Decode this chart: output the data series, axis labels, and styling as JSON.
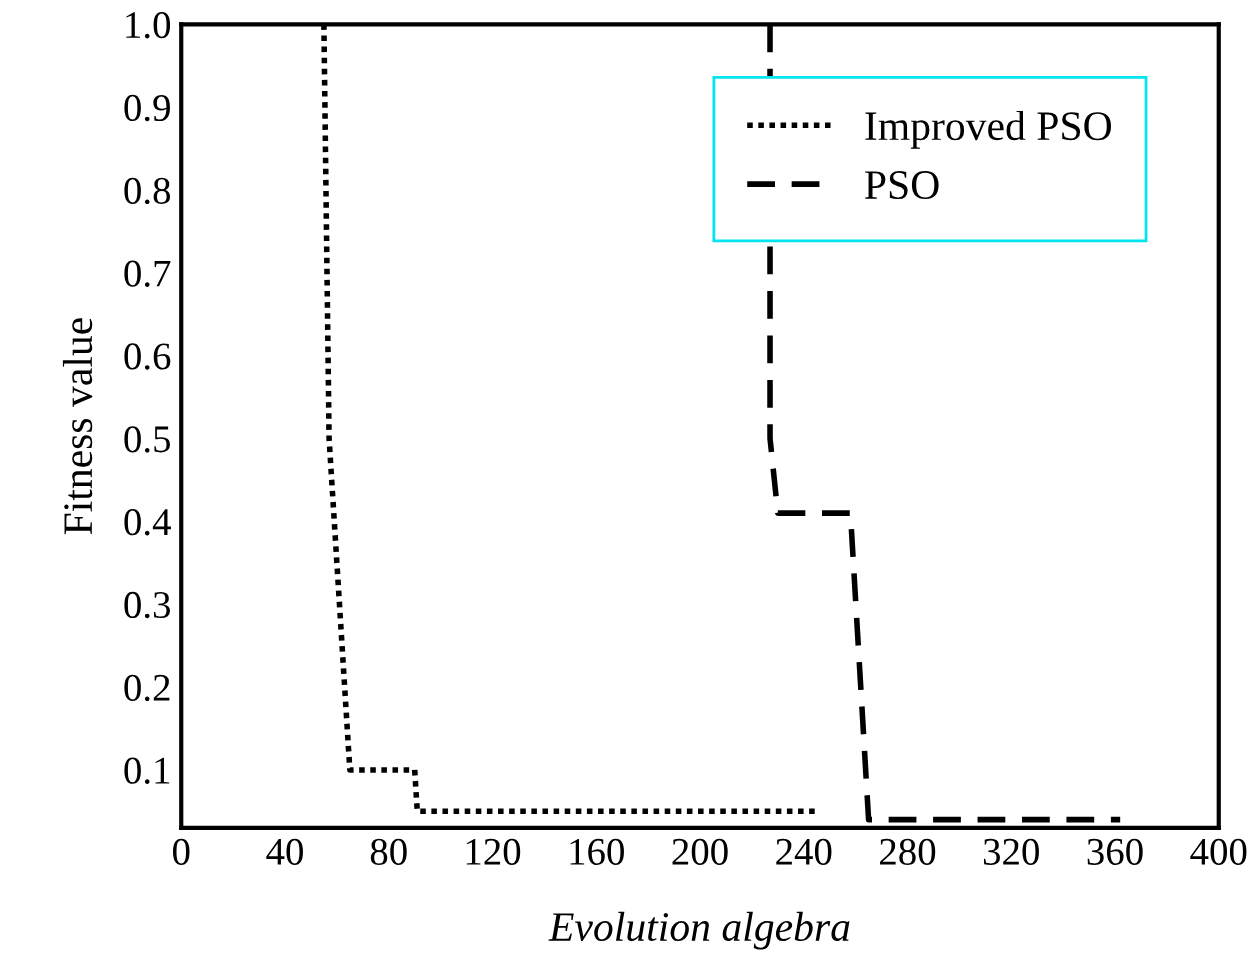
{
  "chart_data": {
    "type": "line",
    "xlabel": "Evolution algebra",
    "ylabel": "Fitness value",
    "xlim": [
      0,
      400
    ],
    "ylim": [
      0.03,
      1.0
    ],
    "xticks": [
      0,
      40,
      80,
      120,
      160,
      200,
      240,
      280,
      320,
      360,
      400
    ],
    "yticks": [
      0.1,
      0.2,
      0.3,
      0.4,
      0.5,
      0.6,
      0.7,
      0.8,
      0.9,
      {
        "value": 1.0,
        "label": "1.0"
      }
    ],
    "legend": "top right",
    "grid": false,
    "marker": "none",
    "series": [
      {
        "name": "Improved PSO",
        "color": "#000000",
        "line_style": "dotted",
        "x": [
          55,
          57,
          65,
          90,
          91,
          245
        ],
        "values": [
          1.0,
          0.5,
          0.1,
          0.1,
          0.05,
          0.05
        ]
      },
      {
        "name": "PSO",
        "color": "#000000",
        "line_style": "dashed",
        "x": [
          227,
          227,
          230,
          258,
          265,
          362
        ],
        "values": [
          1.0,
          0.5,
          0.41,
          0.41,
          0.04,
          0.04
        ]
      }
    ]
  }
}
